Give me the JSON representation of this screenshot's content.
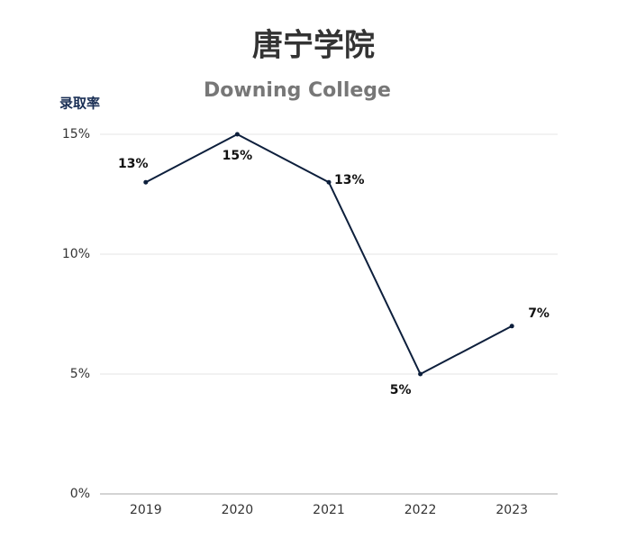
{
  "chart_data": {
    "type": "line",
    "title": "唐宁学院",
    "subtitle": "Downing College",
    "y_label": "录取率",
    "categories": [
      "2019",
      "2020",
      "2021",
      "2022",
      "2023"
    ],
    "values": [
      13,
      15,
      13,
      5,
      7
    ],
    "value_labels": [
      "13%",
      "15%",
      "13%",
      "5%",
      "7%"
    ],
    "color": "#0d1f3c",
    "ylim": [
      0,
      15
    ],
    "yticks": [
      {
        "value": 0,
        "label": "0%"
      },
      {
        "value": 5,
        "label": "5%"
      },
      {
        "value": 10,
        "label": "10%"
      },
      {
        "value": 15,
        "label": "15%"
      }
    ],
    "grid": true
  }
}
